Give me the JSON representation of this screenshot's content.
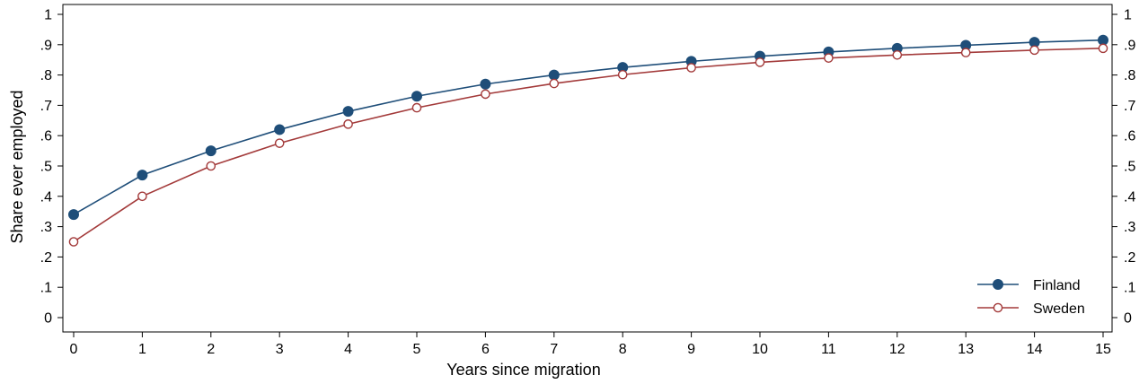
{
  "chart_data": {
    "type": "line",
    "xlabel": "Years since migration",
    "ylabel": "Share ever employed",
    "xlim": [
      0,
      15
    ],
    "ylim": [
      0,
      1
    ],
    "x": [
      0,
      1,
      2,
      3,
      4,
      5,
      6,
      7,
      8,
      9,
      10,
      11,
      12,
      13,
      14,
      15
    ],
    "x_tick_labels": [
      "0",
      "1",
      "2",
      "3",
      "4",
      "5",
      "6",
      "7",
      "8",
      "9",
      "10",
      "11",
      "12",
      "13",
      "14",
      "15"
    ],
    "y_ticks": [
      0,
      0.1,
      0.2,
      0.3,
      0.4,
      0.5,
      0.6,
      0.7,
      0.8,
      0.9,
      1
    ],
    "y_tick_labels": [
      "0",
      ".1",
      ".2",
      ".3",
      ".4",
      ".5",
      ".6",
      ".7",
      ".8",
      ".9",
      "1"
    ],
    "grid": false,
    "legend_position": "bottom-right",
    "series": [
      {
        "name": "Finland",
        "color": "#1f4e79",
        "marker": "filled-circle",
        "values": [
          0.34,
          0.47,
          0.55,
          0.62,
          0.68,
          0.73,
          0.77,
          0.8,
          0.825,
          0.845,
          0.862,
          0.876,
          0.888,
          0.898,
          0.908,
          0.915
        ]
      },
      {
        "name": "Sweden",
        "color": "#a33a3a",
        "marker": "hollow-circle",
        "values": [
          0.25,
          0.4,
          0.5,
          0.575,
          0.638,
          0.692,
          0.737,
          0.772,
          0.801,
          0.824,
          0.842,
          0.856,
          0.866,
          0.874,
          0.882,
          0.888
        ]
      }
    ]
  }
}
